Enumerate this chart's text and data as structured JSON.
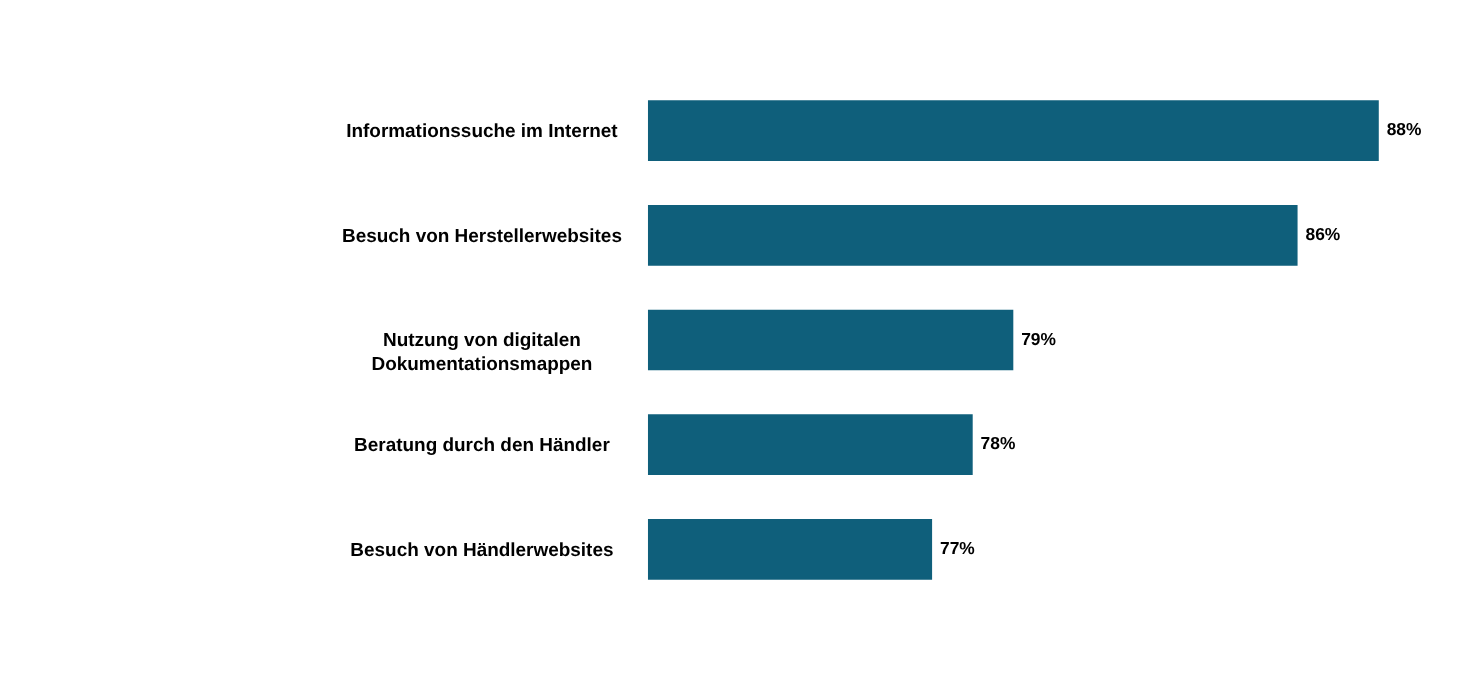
{
  "chart_data": {
    "type": "bar",
    "orientation": "horizontal",
    "categories": [
      "Informationssuche im Internet",
      "Besuch von Herstellerwebsites",
      "Nutzung von digitalen\nDokumentationsmappen",
      "Beratung durch den Händler",
      "Besuch von Händlerwebsites"
    ],
    "values": [
      88,
      86,
      79,
      78,
      77
    ],
    "value_labels": [
      "88%",
      "86%",
      "79%",
      "78%",
      "77%"
    ],
    "color": "#0f5f7b",
    "xlim": [
      70,
      90
    ],
    "tick_labels": "y"
  }
}
